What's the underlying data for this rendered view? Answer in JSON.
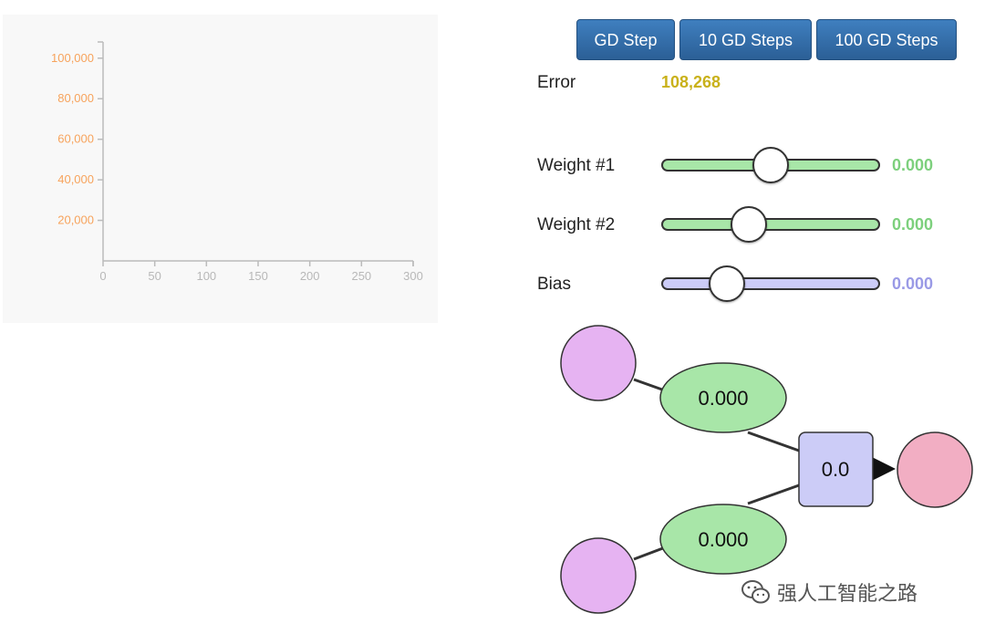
{
  "controls": {
    "buttons": [
      {
        "label": "GD Step"
      },
      {
        "label": "10 GD Steps"
      },
      {
        "label": "100 GD Steps"
      }
    ],
    "error": {
      "label": "Error",
      "value": "108,268"
    },
    "sliders": [
      {
        "label": "Weight #1",
        "value": "0.000",
        "fraction": 0.5,
        "color": "#a8e6a8",
        "value_color": "#7dd07d"
      },
      {
        "label": "Weight #2",
        "value": "0.000",
        "fraction": 0.4,
        "color": "#a8e6a8",
        "value_color": "#7dd07d"
      },
      {
        "label": "Bias",
        "value": "0.000",
        "fraction": 0.3,
        "color": "#ccccf7",
        "value_color": "#9a9ae6"
      }
    ]
  },
  "network": {
    "input_color": "#e6b3f2",
    "weight_color": "#a8e6a8",
    "sum_color": "#ccccf7",
    "output_color": "#f2aec3",
    "weight1_value": "0.000",
    "weight2_value": "0.000",
    "sum_value": "0.0"
  },
  "chart_data": {
    "type": "line",
    "title": "",
    "xlabel": "",
    "ylabel": "",
    "x_ticks": [
      "0",
      "50",
      "100",
      "150",
      "200",
      "250",
      "300"
    ],
    "y_ticks": [
      "20,000",
      "40,000",
      "60,000",
      "80,000",
      "100,000"
    ],
    "xlim": [
      0,
      300
    ],
    "ylim": [
      0,
      108000
    ],
    "series": [],
    "grid": false
  },
  "watermark": {
    "text": "强人工智能之路",
    "icon": "wechat-icon"
  }
}
